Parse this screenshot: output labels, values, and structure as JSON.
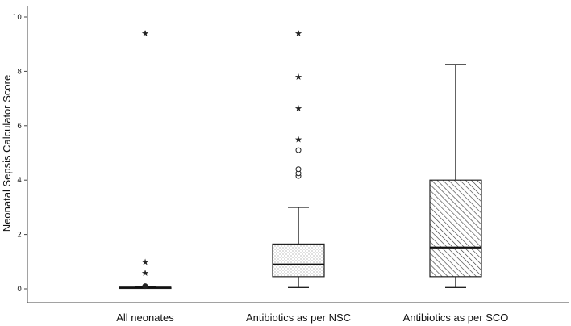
{
  "chart_data": {
    "type": "boxplot",
    "title": "",
    "xlabel": "",
    "ylabel": "Neonatal Sepsis Calculator Score",
    "ylim": [
      0,
      10.5
    ],
    "yticks": [
      0,
      2,
      4,
      6,
      8,
      10
    ],
    "grid": false,
    "categories": [
      "All neonates",
      "Antibiotics as per NSC",
      "Antibiotics as per SCO"
    ],
    "boxes": [
      {
        "category": "All neonates",
        "fill_pattern": "none",
        "whisker_low": 0.02,
        "q1": 0.03,
        "median": 0.05,
        "q3": 0.06,
        "whisker_high": 0.08,
        "outliers_circle": [
          0.1
        ],
        "outliers_extreme": [
          0.6,
          1.0,
          9.4
        ]
      },
      {
        "category": "Antibiotics as per NSC",
        "fill_pattern": "dots",
        "whisker_low": 0.05,
        "q1": 0.45,
        "median": 0.9,
        "q3": 1.65,
        "whisker_high": 3.0,
        "outliers_circle": [
          4.15,
          4.25,
          4.4,
          5.1
        ],
        "outliers_extreme": [
          5.5,
          6.65,
          7.8,
          9.4
        ]
      },
      {
        "category": "Antibiotics as per SCO",
        "fill_pattern": "diagonal",
        "whisker_low": 0.05,
        "q1": 0.45,
        "median": 1.52,
        "q3": 4.0,
        "whisker_high": 8.25,
        "outliers_circle": [],
        "outliers_extreme": []
      }
    ]
  }
}
